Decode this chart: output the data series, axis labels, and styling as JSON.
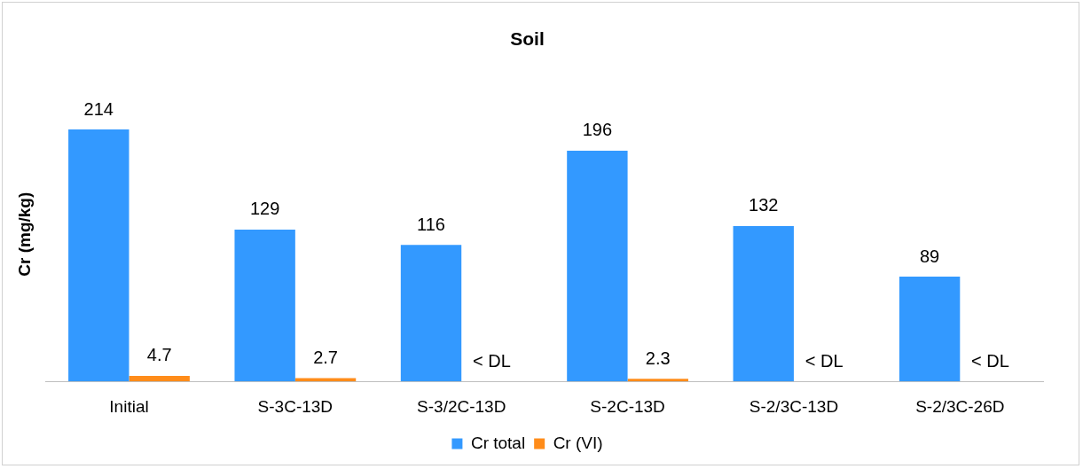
{
  "chart_data": {
    "type": "bar",
    "title": "Soil",
    "ylabel": "Cr (mg/kg)",
    "categories": [
      "Initial",
      "S-3C-13D",
      "S-3/2C-13D",
      "S-2C-13D",
      "S-2/3C-13D",
      "S-2/3C-26D"
    ],
    "series": [
      {
        "name": "Cr total",
        "color": "#3399ff",
        "values": [
          214,
          129,
          116,
          196,
          132,
          89
        ],
        "value_labels": [
          "214",
          "129",
          "116",
          "196",
          "132",
          "89"
        ]
      },
      {
        "name": "Cr (VI)",
        "color": "#ff8c1a",
        "values": [
          4.7,
          2.7,
          null,
          2.3,
          null,
          null
        ],
        "value_labels": [
          "4.7",
          "2.7",
          "< DL",
          "2.3",
          "< DL",
          "< DL"
        ]
      }
    ],
    "data_labels": true,
    "legend": "bottom",
    "tick_labels": "x"
  }
}
